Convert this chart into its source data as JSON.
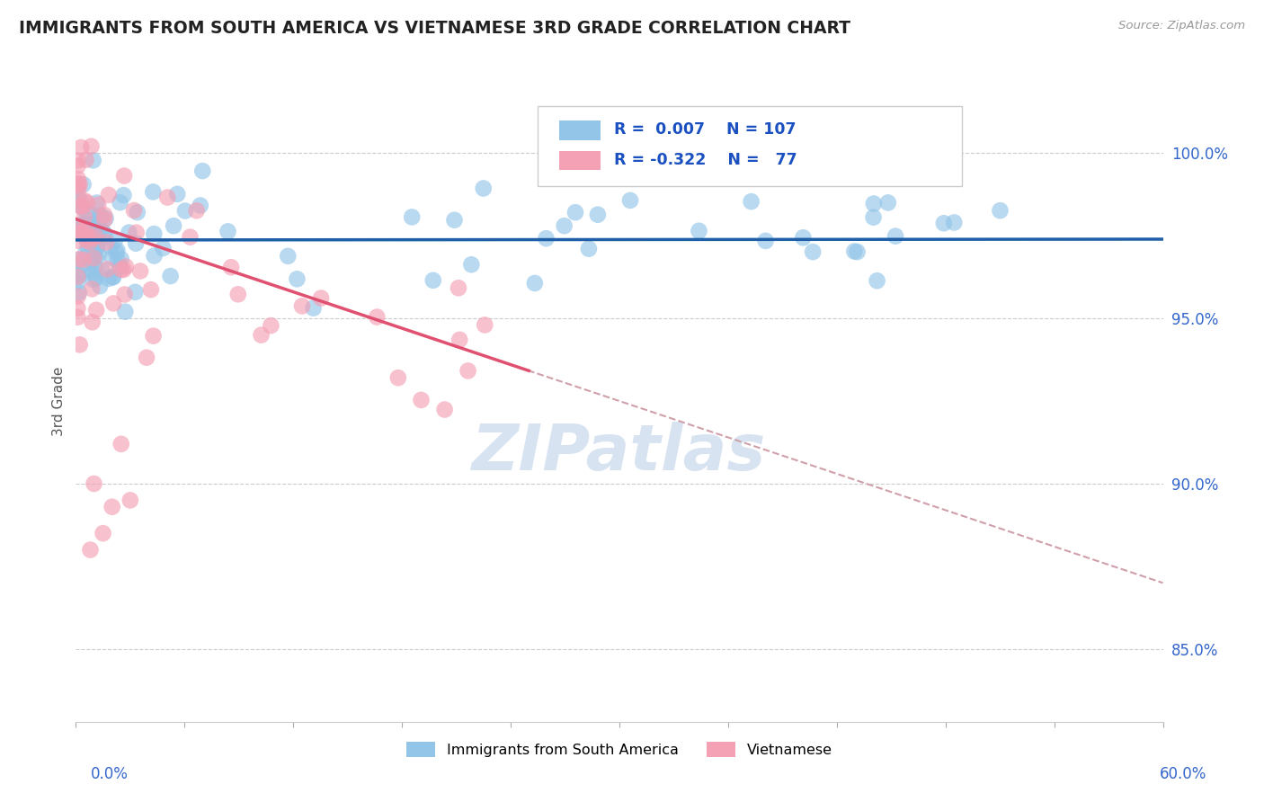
{
  "title": "IMMIGRANTS FROM SOUTH AMERICA VS VIETNAMESE 3RD GRADE CORRELATION CHART",
  "source": "Source: ZipAtlas.com",
  "ylabel": "3rd Grade",
  "ytick_labels": [
    "85.0%",
    "90.0%",
    "95.0%",
    "100.0%"
  ],
  "ytick_values": [
    0.85,
    0.9,
    0.95,
    1.0
  ],
  "xlim": [
    0.0,
    0.6
  ],
  "ylim": [
    0.828,
    1.022
  ],
  "legend_blue_label": "Immigrants from South America",
  "legend_pink_label": "Vietnamese",
  "r_blue": 0.007,
  "n_blue": 107,
  "r_pink": -0.322,
  "n_pink": 77,
  "blue_color": "#92C5E8",
  "pink_color": "#F4A0B5",
  "blue_line_color": "#1E5FA8",
  "pink_line_color": "#E05070",
  "dashed_line_color": "#D0A0AA",
  "watermark_color": "#C8D8EC",
  "background_color": "#FFFFFF",
  "grid_color": "#CCCCCC"
}
